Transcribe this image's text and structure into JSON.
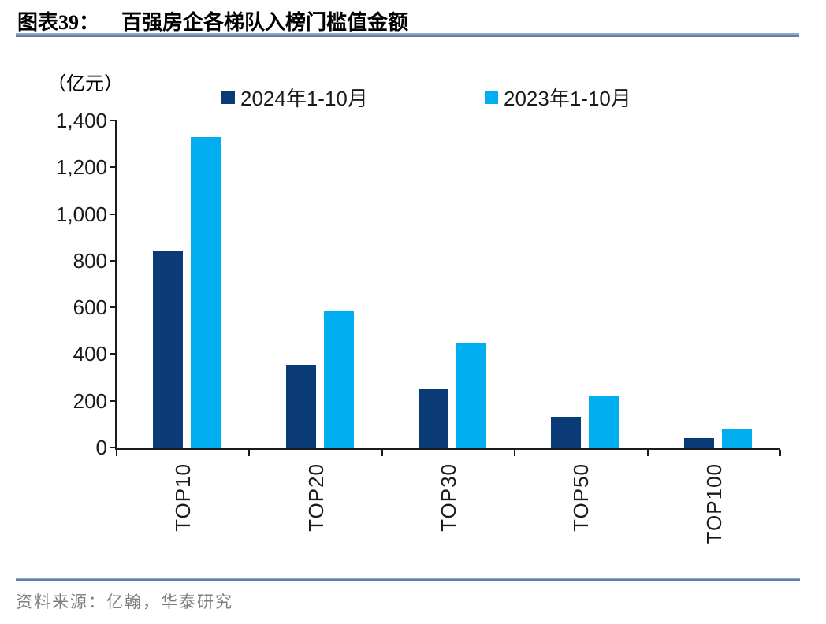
{
  "header": {
    "chart_label": "图表39：",
    "title": "百强房企各梯队入榜门槛值金额"
  },
  "footer": {
    "source": "资料来源：亿翰，华泰研究"
  },
  "colors": {
    "series_2024": "#0A3B76",
    "series_2023": "#00AEEF",
    "rule_blue": "#7F9DC4",
    "axis": "#1a1a1a",
    "source_gray": "#7F7F7F"
  },
  "chart_data": {
    "type": "bar",
    "title": "百强房企各梯队入榜门槛值金额",
    "unit_label": "（亿元）",
    "xlabel": "",
    "ylabel": "亿元",
    "categories": [
      "TOP10",
      "TOP20",
      "TOP30",
      "TOP50",
      "TOP100"
    ],
    "series": [
      {
        "name": "2024年1-10月",
        "color": "#0A3B76",
        "values": [
          845,
          355,
          250,
          130,
          40
        ]
      },
      {
        "name": "2023年1-10月",
        "color": "#00AEEF",
        "values": [
          1330,
          585,
          450,
          220,
          80
        ]
      }
    ],
    "ylim": [
      0,
      1400
    ],
    "ytick_step": 200,
    "ytick_labels": [
      "0",
      "200",
      "400",
      "600",
      "800",
      "1,000",
      "1,200",
      "1,400"
    ],
    "legend_position": "top",
    "grid": false
  }
}
